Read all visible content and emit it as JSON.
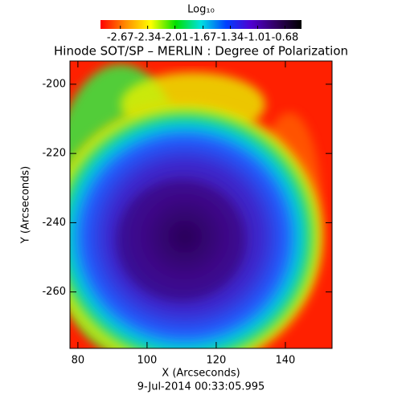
{
  "chart_data": {
    "type": "image",
    "title": "Hinode SOT/SP – MERLIN : Degree of Polarization",
    "colorbar_label": "Log₁₀",
    "colormap": [
      "#ff0000",
      "#ff8c00",
      "#ffff00",
      "#00e000",
      "#00e0e0",
      "#0040ff",
      "#5000d0",
      "#300060",
      "#000000"
    ],
    "clim": [
      -2.91,
      -0.48
    ],
    "cticks": [
      -2.67,
      -2.34,
      -2.01,
      -1.67,
      -1.34,
      -1.01,
      -0.68
    ],
    "x_label": "X (Arcseconds)",
    "y_label": "Y (Arcseconds)",
    "subtitle": "9-Jul-2014 00:33:05.995",
    "xlim": [
      77.7,
      153.5
    ],
    "xticks": [
      80,
      100,
      120,
      140
    ],
    "ylim": [
      -276.3,
      -193.3
    ],
    "yticks": [
      -200,
      -220,
      -240,
      -260
    ]
  }
}
